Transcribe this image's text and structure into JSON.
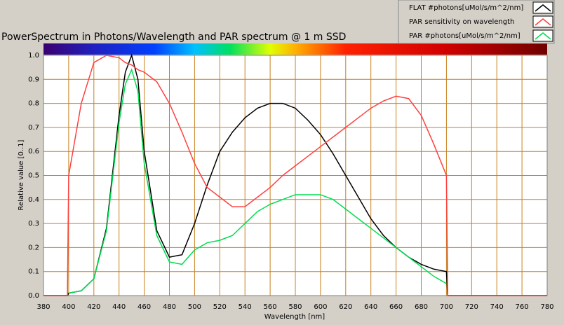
{
  "chart_data": {
    "type": "line",
    "title": "PowerSpectrum in Photons/Wavelength and PAR spectrum @ 1 m SSD",
    "x_label": "Wavelength [nm]",
    "y_label": "Relative value [0..1]",
    "x": [
      380,
      399,
      400,
      410,
      420,
      430,
      440,
      445,
      450,
      455,
      460,
      470,
      480,
      490,
      500,
      510,
      520,
      530,
      540,
      550,
      560,
      570,
      580,
      590,
      600,
      610,
      620,
      630,
      640,
      650,
      660,
      670,
      680,
      690,
      700,
      701,
      780
    ],
    "series": [
      {
        "name": "FLAT #photons[uMol/s/m^2/nm]",
        "color": "#000000",
        "values": [
          0,
          0,
          0.01,
          0.02,
          0.07,
          0.28,
          0.75,
          0.93,
          1.0,
          0.9,
          0.6,
          0.27,
          0.16,
          0.17,
          0.3,
          0.46,
          0.6,
          0.68,
          0.74,
          0.78,
          0.8,
          0.8,
          0.78,
          0.73,
          0.67,
          0.59,
          0.5,
          0.41,
          0.32,
          0.25,
          0.2,
          0.16,
          0.13,
          0.11,
          0.1,
          0,
          0
        ]
      },
      {
        "name": "PAR sensitivity on wavelength",
        "color": "#ff4040",
        "values": [
          0,
          0,
          0.5,
          0.8,
          0.97,
          1.0,
          0.99,
          0.97,
          0.96,
          0.94,
          0.93,
          0.89,
          0.8,
          0.68,
          0.55,
          0.45,
          0.41,
          0.37,
          0.37,
          0.41,
          0.45,
          0.5,
          0.54,
          0.58,
          0.62,
          0.66,
          0.7,
          0.74,
          0.78,
          0.81,
          0.83,
          0.82,
          0.75,
          0.63,
          0.5,
          0,
          0
        ]
      },
      {
        "name": "PAR #photons[uMol/s/m^2/nm]",
        "color": "#00dd50",
        "values": [
          null,
          null,
          0.01,
          0.02,
          0.07,
          0.27,
          0.72,
          0.88,
          0.94,
          0.85,
          0.55,
          0.25,
          0.14,
          0.13,
          0.19,
          0.22,
          0.23,
          0.25,
          0.3,
          0.35,
          0.38,
          0.4,
          0.42,
          0.42,
          0.42,
          0.4,
          0.36,
          0.32,
          0.28,
          0.24,
          0.2,
          0.16,
          0.12,
          0.08,
          0.05,
          null,
          null
        ]
      }
    ],
    "xlim": [
      380,
      780
    ],
    "xticks": [
      380,
      400,
      420,
      440,
      460,
      480,
      500,
      520,
      540,
      560,
      580,
      600,
      620,
      640,
      660,
      680,
      700,
      720,
      740,
      760,
      780
    ],
    "ylim": [
      0,
      1
    ],
    "yticks": [
      {
        "value": 0,
        "label": "0.0"
      },
      0.1,
      0.2,
      0.3,
      0.4,
      0.5,
      0.6,
      0.7,
      0.8,
      0.9,
      {
        "value": 1,
        "label": "1.0"
      }
    ],
    "grid": true
  }
}
